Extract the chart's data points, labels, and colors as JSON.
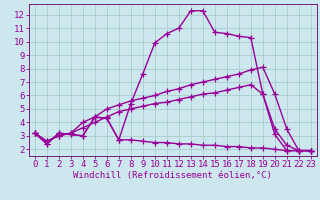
{
  "xlabel": "Windchill (Refroidissement éolien,°C)",
  "background_color": "#cce8ee",
  "grid_color": "#aacccc",
  "line_color": "#990099",
  "spine_color": "#660066",
  "xlim": [
    -0.5,
    23.5
  ],
  "ylim": [
    1.5,
    12.8
  ],
  "xticks": [
    0,
    1,
    2,
    3,
    4,
    5,
    6,
    7,
    8,
    9,
    10,
    11,
    12,
    13,
    14,
    15,
    16,
    17,
    18,
    19,
    20,
    21,
    22,
    23
  ],
  "yticks": [
    2,
    3,
    4,
    5,
    6,
    7,
    8,
    9,
    10,
    11,
    12
  ],
  "series": [
    [
      3.2,
      2.4,
      3.2,
      3.1,
      3.0,
      4.4,
      4.3,
      2.7,
      5.4,
      7.6,
      9.9,
      10.6,
      11.0,
      12.3,
      12.3,
      10.7,
      10.6,
      10.4,
      10.3,
      6.1,
      3.1,
      1.9,
      1.9,
      1.9
    ],
    [
      3.2,
      2.4,
      3.2,
      3.1,
      3.0,
      4.4,
      4.3,
      2.7,
      2.7,
      2.6,
      2.5,
      2.5,
      2.4,
      2.4,
      2.3,
      2.3,
      2.2,
      2.2,
      2.1,
      2.1,
      2.0,
      1.9,
      1.9,
      1.9
    ],
    [
      3.2,
      2.6,
      3.0,
      3.2,
      4.0,
      4.4,
      5.0,
      5.3,
      5.6,
      5.8,
      6.0,
      6.3,
      6.5,
      6.8,
      7.0,
      7.2,
      7.4,
      7.6,
      7.9,
      8.1,
      6.1,
      3.5,
      1.9,
      1.9
    ],
    [
      3.2,
      2.6,
      3.0,
      3.2,
      3.6,
      4.0,
      4.4,
      4.8,
      5.0,
      5.2,
      5.4,
      5.5,
      5.7,
      5.9,
      6.1,
      6.2,
      6.4,
      6.6,
      6.8,
      6.1,
      3.5,
      2.3,
      1.9,
      1.9
    ]
  ],
  "marker": "+",
  "markersize": 4,
  "linewidth": 1.0,
  "fontsize_ticks": 6.5,
  "fontsize_label": 6.5
}
